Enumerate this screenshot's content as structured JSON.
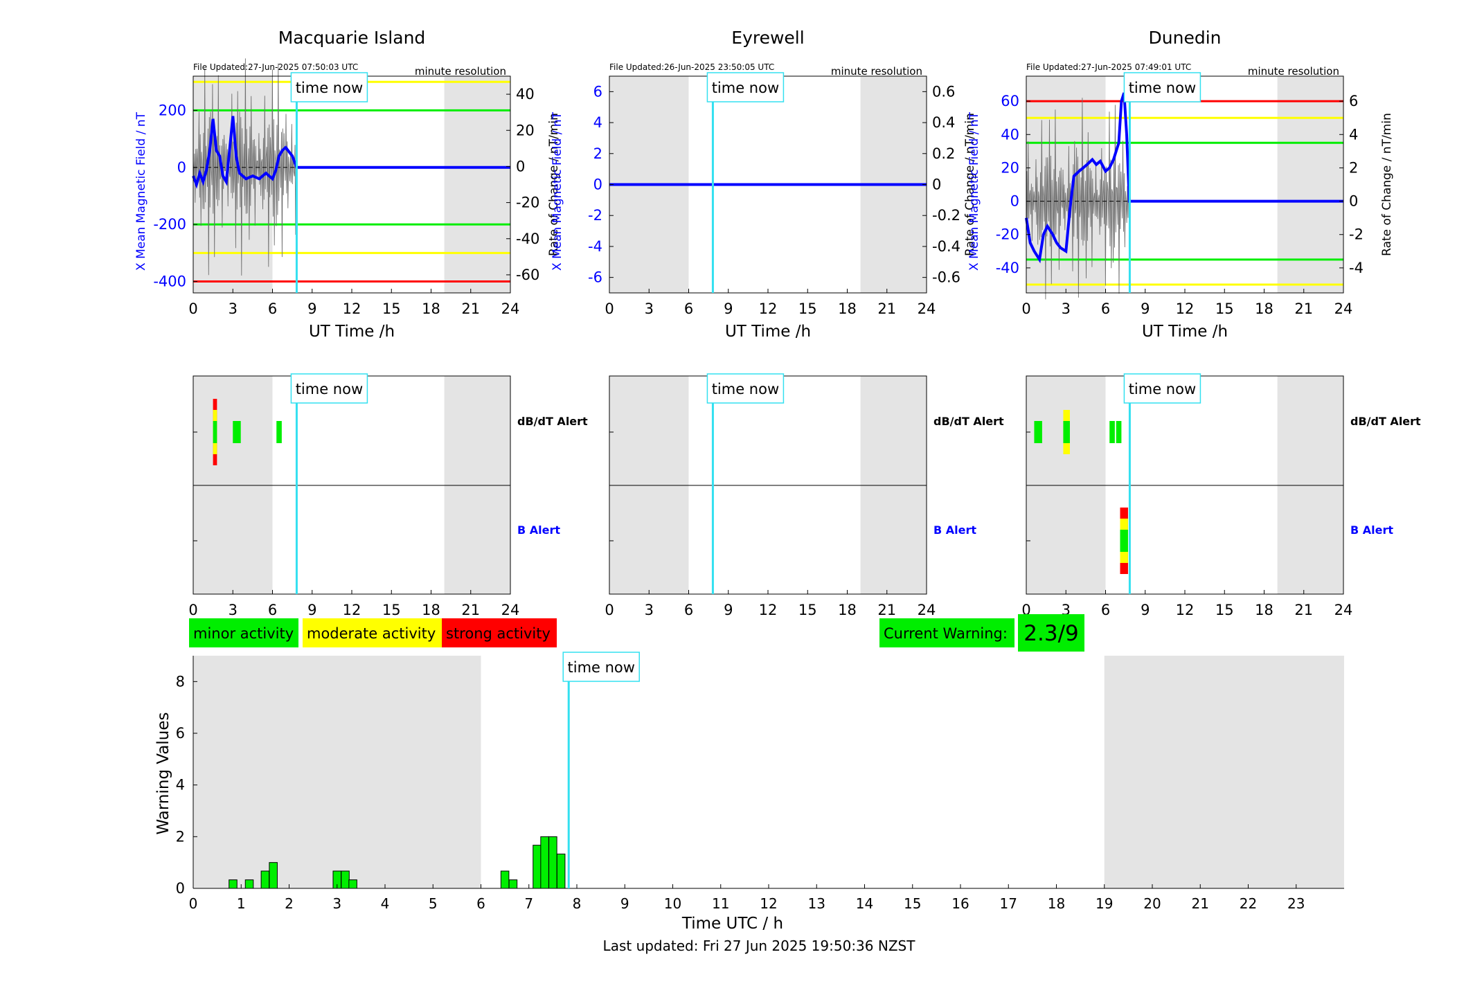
{
  "colors": {
    "night_shade": "#e4e4e4",
    "time_now_line": "#33e0f0",
    "minor": "#00ee00",
    "moderate": "#ffff00",
    "strong": "#ff0000",
    "b_field": "#0000ff",
    "rate": "#707070"
  },
  "time_now_label": "time now",
  "resolution_label": "minute resolution",
  "legend": {
    "minor": "minor activity",
    "moderate": "moderate activity",
    "strong": "strong activity"
  },
  "current_warning": {
    "label": "Current Warning:",
    "value": "2.3/9"
  },
  "last_updated": "Last updated: Fri 27 Jun 2025 19:50:36 NZST",
  "chart_data": [
    {
      "type": "line",
      "title": "Macquarie Island",
      "file_updated": "File Updated:27-Jun-2025 07:50:03 UTC",
      "xlabel": "UT Time /h",
      "ylabel_left": "X Mean Magnetic Field / nT",
      "ylabel_right": "Rate of Change / nT/min",
      "xlim": [
        0,
        24
      ],
      "ylim_left": [
        -440,
        320
      ],
      "ylim_right": [
        -70,
        50
      ],
      "x_ticks": [
        "0",
        "3",
        "6",
        "9",
        "12",
        "15",
        "18",
        "21",
        "24"
      ],
      "y_ticks_left": [
        "200",
        "0",
        "-200",
        "-400"
      ],
      "y_ticks_right": [
        "40",
        "20",
        "0",
        "-20",
        "-40",
        "-60"
      ],
      "night": [
        [
          0,
          6
        ],
        [
          19,
          24
        ]
      ],
      "time_now": 7.83,
      "thresholds": [
        {
          "value": 300,
          "level": "moderate"
        },
        {
          "value": 200,
          "level": "minor"
        },
        {
          "value": -200,
          "level": "minor"
        },
        {
          "value": -300,
          "level": "moderate"
        },
        {
          "value": -400,
          "level": "strong"
        }
      ],
      "series": [
        {
          "x": [
            0,
            0.25,
            0.5,
            0.75,
            1,
            1.25,
            1.5,
            1.75,
            2,
            2.25,
            2.5,
            2.75,
            3,
            3.25,
            3.5,
            4,
            4.5,
            5,
            5.5,
            6,
            6.25,
            6.5,
            6.75,
            7,
            7.5,
            7.83,
            10,
            15,
            20,
            24
          ],
          "y": [
            -30,
            -60,
            -20,
            -50,
            -10,
            60,
            170,
            60,
            40,
            -30,
            -50,
            60,
            180,
            40,
            -20,
            -40,
            -30,
            -40,
            -20,
            -40,
            -10,
            40,
            60,
            70,
            40,
            0,
            0,
            0,
            0,
            0
          ]
        }
      ]
    },
    {
      "type": "line",
      "title": "Eyrewell",
      "file_updated": "File Updated:26-Jun-2025 23:50:05 UTC",
      "xlabel": "UT Time /h",
      "ylabel_left": "X Mean Magnetic Field / nT",
      "ylabel_right": "Rate of Change / nT/min",
      "xlim": [
        0,
        24
      ],
      "ylim_left": [
        -7,
        7
      ],
      "ylim_right": [
        -0.7,
        0.7
      ],
      "x_ticks": [
        "0",
        "3",
        "6",
        "9",
        "12",
        "15",
        "18",
        "21",
        "24"
      ],
      "y_ticks_left": [
        "6",
        "4",
        "2",
        "0",
        "-2",
        "-4",
        "-6"
      ],
      "y_ticks_right": [
        "0.6",
        "0.4",
        "0.2",
        "0",
        "-0.2",
        "-0.4",
        "-0.6"
      ],
      "night": [
        [
          0,
          6
        ],
        [
          19,
          24
        ]
      ],
      "time_now": 7.83,
      "thresholds": [],
      "series": [
        {
          "x": [
            0,
            24
          ],
          "y": [
            0,
            0
          ]
        }
      ]
    },
    {
      "type": "line",
      "title": "Dunedin",
      "file_updated": "File Updated:27-Jun-2025 07:49:01 UTC",
      "xlabel": "UT Time /h",
      "ylabel_left": "X Mean Magnetic Field / nT",
      "ylabel_right": "Rate of Change / nT/min",
      "xlim": [
        0,
        24
      ],
      "ylim_left": [
        -55,
        75
      ],
      "ylim_right": [
        -5.5,
        7.5
      ],
      "x_ticks": [
        "0",
        "3",
        "6",
        "9",
        "12",
        "15",
        "18",
        "21",
        "24"
      ],
      "y_ticks_left": [
        "60",
        "40",
        "20",
        "0",
        "-20",
        "-40"
      ],
      "y_ticks_right": [
        "6",
        "4",
        "2",
        "0",
        "-2",
        "-4"
      ],
      "night": [
        [
          0,
          6
        ],
        [
          19,
          24
        ]
      ],
      "time_now": 7.83,
      "thresholds": [
        {
          "value": 60,
          "level": "strong"
        },
        {
          "value": 50,
          "level": "moderate"
        },
        {
          "value": 35,
          "level": "minor"
        },
        {
          "value": -35,
          "level": "minor"
        },
        {
          "value": -50,
          "level": "moderate"
        }
      ],
      "series": [
        {
          "x": [
            0,
            0.3,
            0.6,
            1,
            1.3,
            1.6,
            2,
            2.3,
            2.6,
            3,
            3.3,
            3.6,
            4,
            4.3,
            4.6,
            5,
            5.3,
            5.6,
            6,
            6.3,
            6.6,
            7,
            7.2,
            7.4,
            7.6,
            7.8,
            8,
            10,
            15,
            20,
            24
          ],
          "y": [
            -10,
            -25,
            -30,
            -35,
            -20,
            -15,
            -20,
            -25,
            -28,
            -30,
            -5,
            15,
            18,
            20,
            22,
            25,
            22,
            24,
            18,
            20,
            25,
            35,
            60,
            65,
            40,
            0,
            0,
            0,
            0,
            0,
            0
          ]
        }
      ]
    },
    {
      "type": "heatmap",
      "station": "Macquarie Island",
      "row_labels": [
        "dB/dT Alert",
        "B Alert"
      ],
      "x_ticks": [
        "0",
        "3",
        "6",
        "9",
        "12",
        "15",
        "18",
        "21",
        "24"
      ],
      "xlim": [
        0,
        24
      ],
      "night": [
        [
          0,
          6
        ],
        [
          19,
          24
        ]
      ],
      "time_now": 7.83,
      "dbdt": [
        [
          1.5,
          1.8,
          3
        ],
        [
          3.0,
          3.6,
          1
        ],
        [
          6.3,
          6.7,
          1
        ]
      ],
      "b": []
    },
    {
      "type": "heatmap",
      "station": "Eyrewell",
      "row_labels": [
        "dB/dT Alert",
        "B Alert"
      ],
      "x_ticks": [
        "0",
        "3",
        "6",
        "9",
        "12",
        "15",
        "18",
        "21",
        "24"
      ],
      "xlim": [
        0,
        24
      ],
      "night": [
        [
          0,
          6
        ],
        [
          19,
          24
        ]
      ],
      "time_now": 7.83,
      "dbdt": [],
      "b": []
    },
    {
      "type": "heatmap",
      "station": "Dunedin",
      "row_labels": [
        "dB/dT Alert",
        "B Alert"
      ],
      "x_ticks": [
        "0",
        "3",
        "6",
        "9",
        "12",
        "15",
        "18",
        "21",
        "24"
      ],
      "xlim": [
        0,
        24
      ],
      "night": [
        [
          0,
          6
        ],
        [
          19,
          24
        ]
      ],
      "time_now": 7.83,
      "dbdt": [
        [
          0.6,
          1.2,
          1
        ],
        [
          2.8,
          3.3,
          2
        ],
        [
          6.3,
          6.7,
          1
        ],
        [
          6.8,
          7.2,
          1
        ]
      ],
      "b": [
        [
          7.1,
          7.7,
          3
        ]
      ]
    },
    {
      "type": "bar",
      "xlabel": "Time UTC / h",
      "ylabel": "Warning Values",
      "xlim": [
        0,
        24
      ],
      "ylim": [
        0,
        9
      ],
      "x_ticks": [
        "0",
        "1",
        "2",
        "3",
        "4",
        "5",
        "6",
        "7",
        "8",
        "9",
        "10",
        "11",
        "12",
        "13",
        "14",
        "15",
        "16",
        "17",
        "18",
        "19",
        "20",
        "21",
        "22",
        "23"
      ],
      "y_ticks": [
        "0",
        "2",
        "4",
        "6",
        "8"
      ],
      "night": [
        [
          0,
          6
        ],
        [
          19,
          24
        ]
      ],
      "time_now": 7.83,
      "x": [
        0.83,
        1.17,
        1.5,
        1.67,
        3.0,
        3.17,
        3.33,
        6.5,
        6.67,
        7.17,
        7.33,
        7.5,
        7.67
      ],
      "values": [
        0.33,
        0.33,
        0.67,
        1.0,
        0.67,
        0.67,
        0.33,
        0.67,
        0.33,
        1.67,
        2.0,
        2.0,
        1.33
      ]
    }
  ]
}
